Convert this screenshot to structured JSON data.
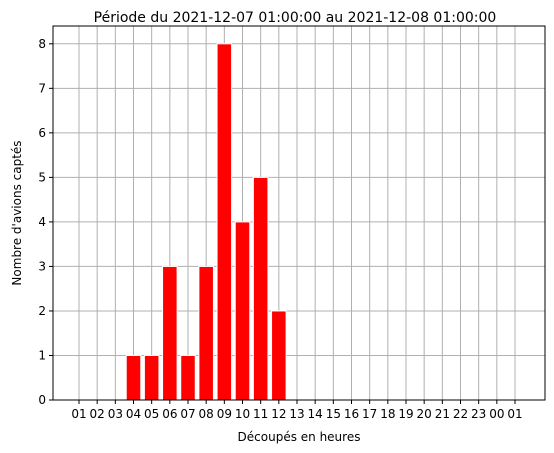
{
  "chart_data": {
    "type": "bar",
    "title": "Période du 2021-12-07 01:00:00 au 2021-12-08 01:00:00",
    "xlabel": "Découpés en heures",
    "ylabel": "Nombre d'avions captés",
    "categories": [
      "01",
      "02",
      "03",
      "04",
      "05",
      "06",
      "07",
      "08",
      "09",
      "10",
      "11",
      "12",
      "13",
      "14",
      "15",
      "16",
      "17",
      "18",
      "19",
      "20",
      "21",
      "22",
      "23",
      "00",
      "01"
    ],
    "values": [
      0,
      0,
      0,
      1,
      1,
      3,
      1,
      3,
      8,
      4,
      5,
      2,
      0,
      0,
      0,
      0,
      0,
      0,
      0,
      0,
      0,
      0,
      0,
      0,
      0
    ],
    "ylim": [
      0,
      8.4
    ],
    "yticks": [
      0,
      1,
      2,
      3,
      4,
      5,
      6,
      7,
      8
    ],
    "grid": true,
    "colors": {
      "bar": "#ff0000",
      "edge": "#ffffff",
      "grid": "#b0b0b0"
    }
  }
}
